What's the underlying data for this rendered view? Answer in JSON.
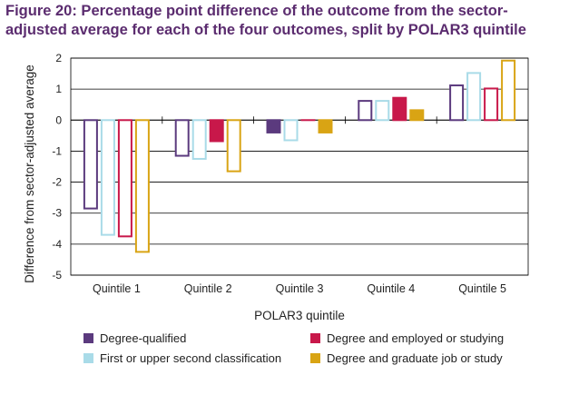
{
  "header": {
    "title_line1": "Figure 20: Percentage point difference of the outcome from the sector-",
    "title_line2": "adjusted average for each of the four outcomes, split by POLAR3 quintile"
  },
  "chart_data": {
    "type": "bar",
    "title": "Figure 20: Percentage point difference of the outcome from the sector-adjusted average for each of the four outcomes, split by POLAR3 quintile",
    "xlabel": "POLAR3 quintile",
    "ylabel": "Difference from sector-adjusted average",
    "ylim": [
      -5,
      2
    ],
    "yticks": [
      2,
      1,
      0,
      -1,
      -2,
      -3,
      -4,
      -5
    ],
    "grid": true,
    "categories": [
      "Quintile 1",
      "Quintile 2",
      "Quintile 3",
      "Quintile 4",
      "Quintile 5"
    ],
    "series": [
      {
        "name": "Degree-qualified",
        "color": "#5b3a7e",
        "fill": "hollow",
        "values": [
          -2.85,
          -1.15,
          -0.4,
          0.62,
          1.12
        ]
      },
      {
        "name": "First or upper second classification",
        "color": "#a9dbe8",
        "fill": "hollow",
        "values": [
          -3.7,
          -1.25,
          -0.65,
          0.62,
          1.52
        ]
      },
      {
        "name": "Degree and employed or studying",
        "color": "#c8184a",
        "fill": "hollow-q1-solid-q2-q4",
        "values": [
          -3.75,
          -0.68,
          0.0,
          0.72,
          1.02
        ]
      },
      {
        "name": "Degree and graduate job or study",
        "color": "#d9a414",
        "fill": "hollow-q1-q2-q5-solid-q3-q4",
        "values": [
          -4.25,
          -1.65,
          -0.4,
          0.32,
          1.92
        ]
      }
    ],
    "legend": [
      {
        "label": "Degree-qualified",
        "color": "#5b3a7e"
      },
      {
        "label": "Degree and employed or studying",
        "color": "#c8184a"
      },
      {
        "label": "First or upper second classification",
        "color": "#a9dbe8"
      },
      {
        "label": "Degree and graduate job or study",
        "color": "#d9a414"
      }
    ],
    "legend_position": "bottom"
  }
}
